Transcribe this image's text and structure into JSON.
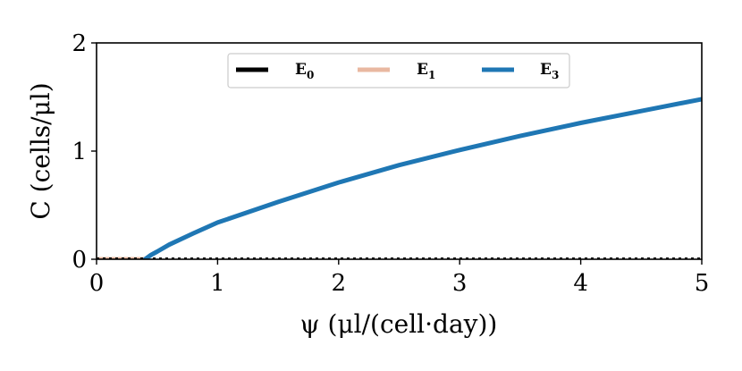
{
  "chart_data": {
    "type": "line",
    "xlabel": "ψ (μl/(cell·day))",
    "ylabel": "C (cells/μl)",
    "xlim": [
      0,
      5
    ],
    "ylim": [
      0,
      2
    ],
    "xticks": [
      "0",
      "1",
      "2",
      "3",
      "4",
      "5"
    ],
    "yticks": [
      "0",
      "1",
      "2"
    ],
    "grid": false,
    "legend": {
      "placement": "top-center",
      "ncol": 3
    },
    "series": [
      {
        "name": "E0",
        "color": "#000000",
        "style": "dotted",
        "x": [
          0,
          5
        ],
        "y": [
          0,
          0
        ]
      },
      {
        "name": "E1",
        "color": "#e9b8a1",
        "style": "solid",
        "x": [
          0,
          0.4
        ],
        "y": [
          0,
          0
        ]
      },
      {
        "name": "E3",
        "color": "#1f77b4",
        "style": "solid",
        "x": [
          0.4,
          0.45,
          0.5,
          0.6,
          0.8,
          1.0,
          1.5,
          2.0,
          2.5,
          3.0,
          3.5,
          4.0,
          4.5,
          5.0
        ],
        "y": [
          0,
          0.04,
          0.07,
          0.135,
          0.24,
          0.34,
          0.53,
          0.71,
          0.87,
          1.01,
          1.14,
          1.26,
          1.37,
          1.48
        ]
      }
    ]
  }
}
